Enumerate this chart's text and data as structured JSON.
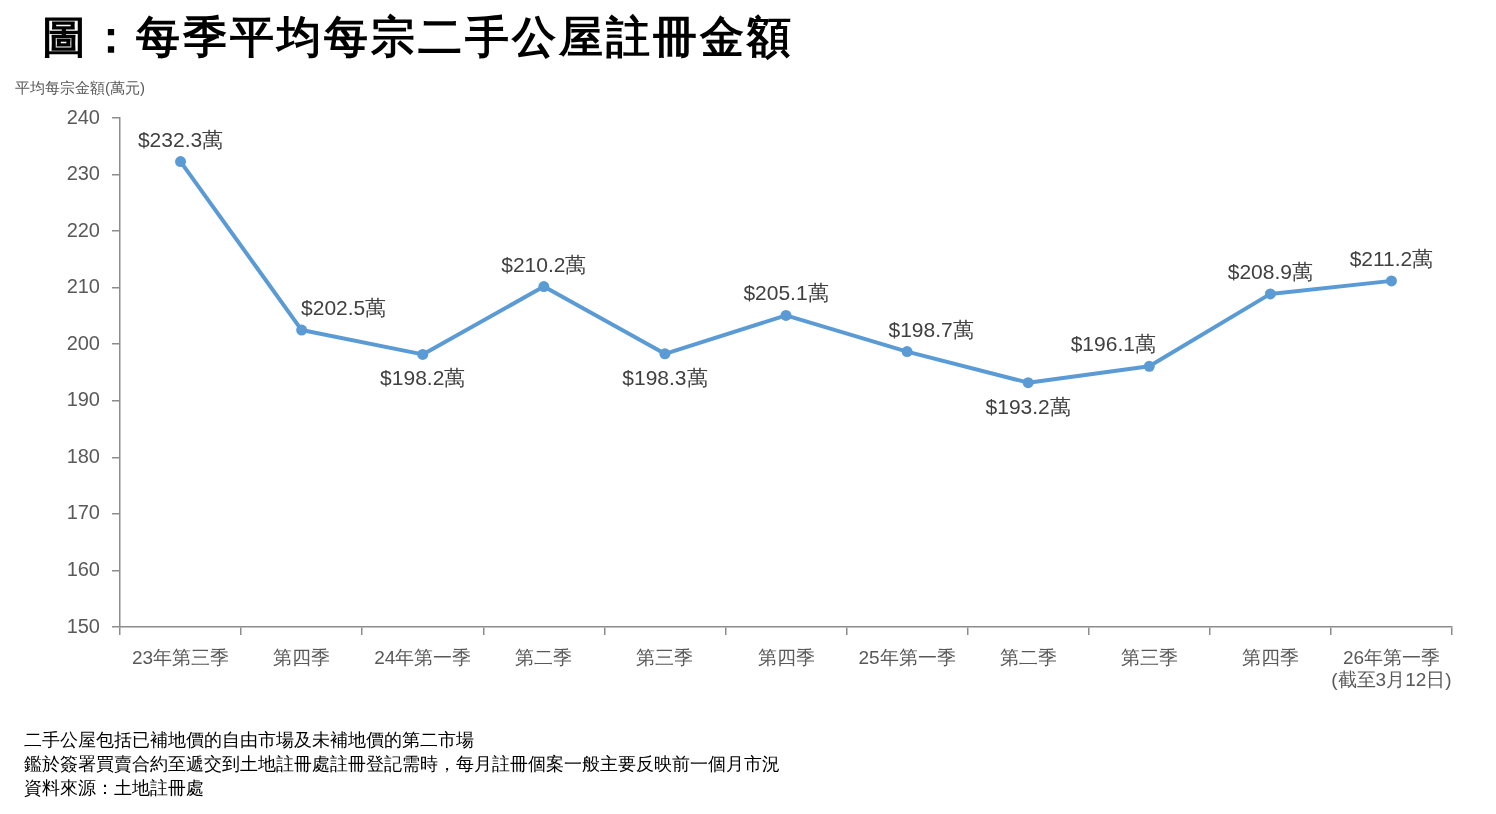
{
  "chart_data": {
    "type": "line",
    "title": "圖：每季平均每宗二手公屋註冊金額",
    "ylabel": "平均每宗金額(萬元)",
    "categories": [
      "23年第三季",
      "第四季",
      "24年第一季",
      "第二季",
      "第三季",
      "第四季",
      "25年第一季",
      "第二季",
      "第三季",
      "第四季",
      "26年第一季\n(截至3月12日)"
    ],
    "values": [
      232.3,
      202.5,
      198.2,
      210.2,
      198.3,
      205.1,
      198.7,
      193.2,
      196.1,
      208.9,
      211.2
    ],
    "value_labels": [
      "$232.3萬",
      "$202.5萬",
      "$198.2萬",
      "$210.2萬",
      "$198.3萬",
      "$205.1萬",
      "$198.7萬",
      "$193.2萬",
      "$196.1萬",
      "$208.9萬",
      "$211.2萬"
    ],
    "color": "#5b9bd5",
    "marker": "circle",
    "line_style": "solid",
    "grid": false,
    "legend": false,
    "ylim": [
      150,
      240
    ],
    "yticks": [
      150,
      160,
      170,
      180,
      190,
      200,
      210,
      220,
      230,
      240
    ],
    "annotations": [
      "二手公屋包括已補地價的自由市場及未補地價的第二市場",
      "鑑於簽署買賣合約至遞交到土地註冊處註冊登記需時，每月註冊個案一般主要反映前一個月市況",
      "資料來源：土地註冊處"
    ]
  }
}
